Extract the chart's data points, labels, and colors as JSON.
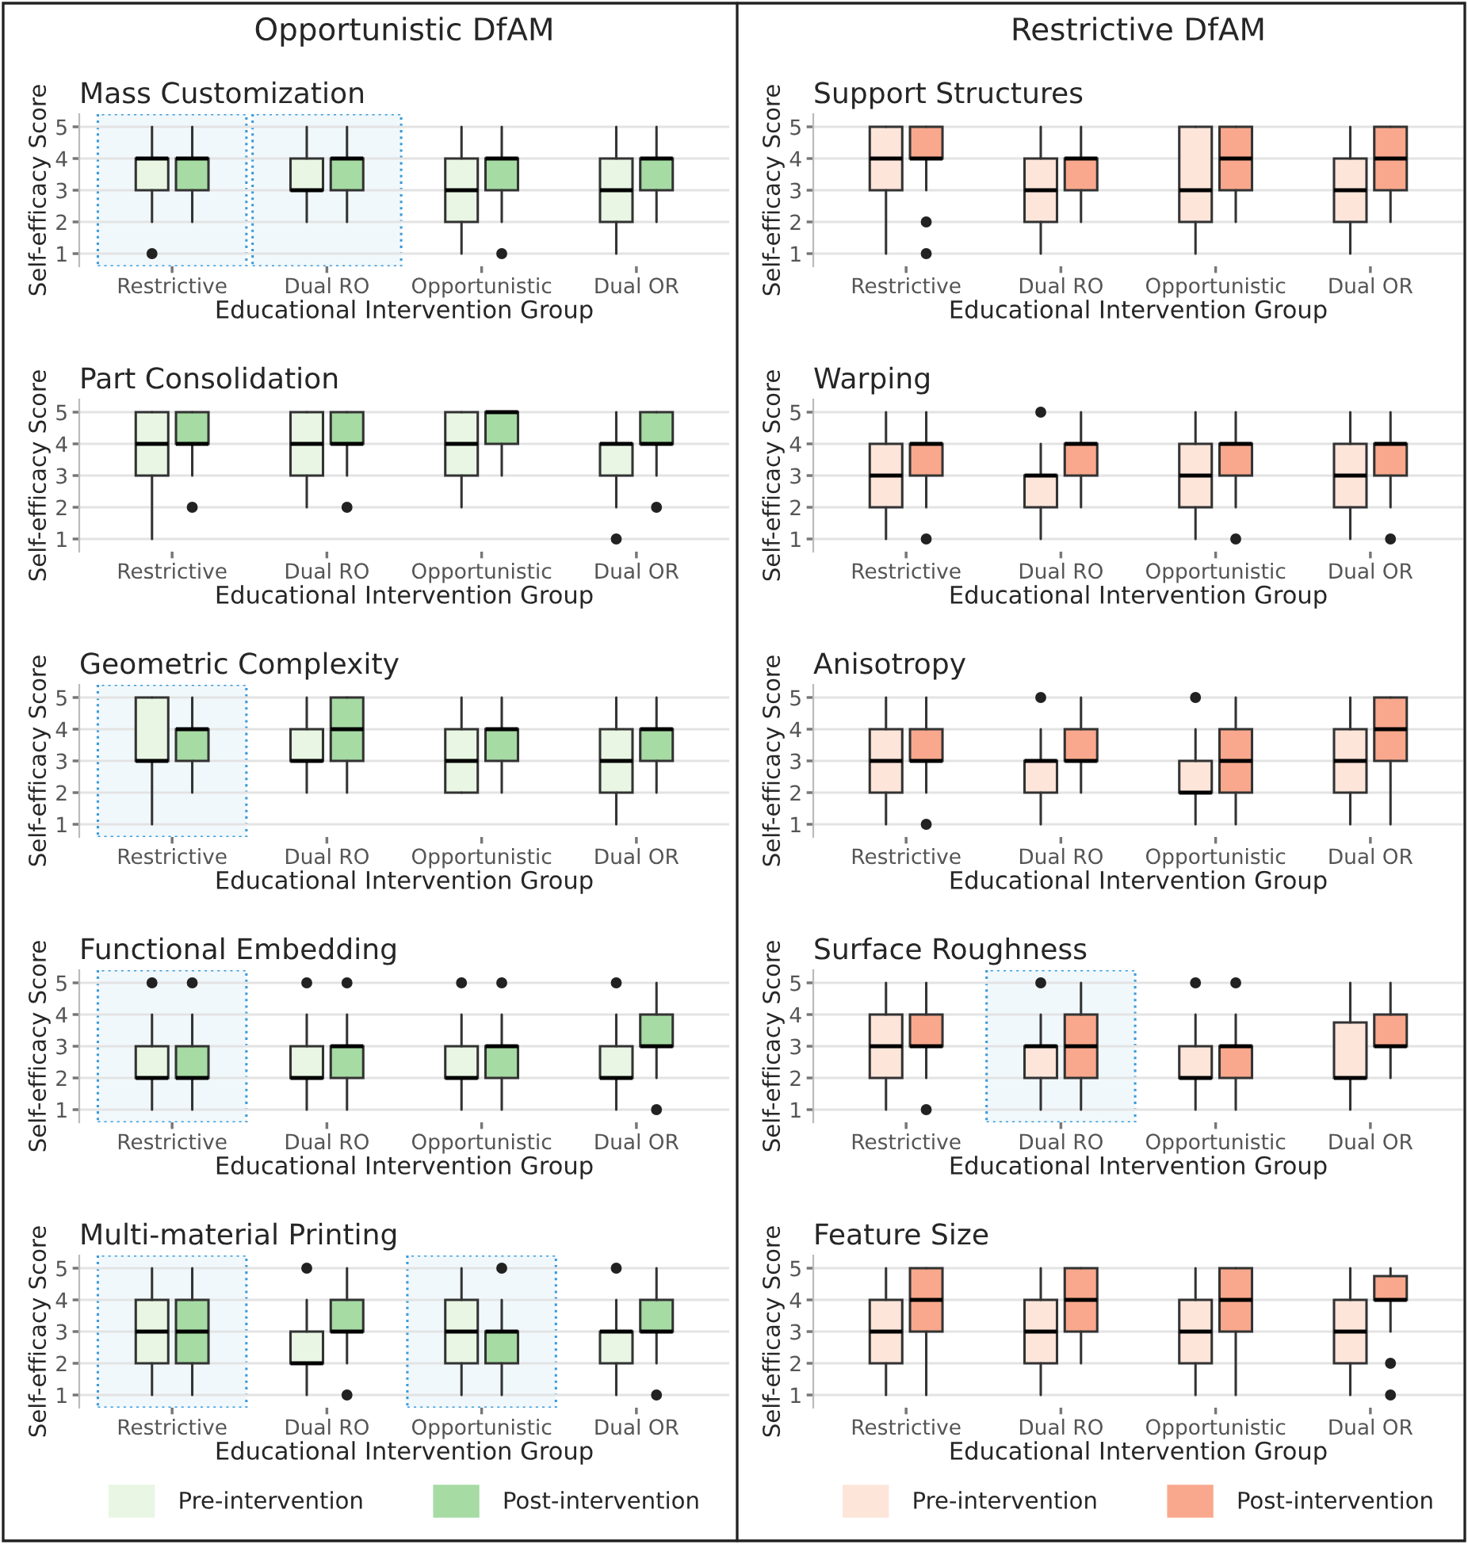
{
  "chart_data": [
    {
      "type": "box",
      "subtitle": "Opportunistic DfAM",
      "title": "Mass Customization",
      "xlabel": "Educational Intervention Group",
      "ylabel": "Self-efficacy Score",
      "categories": [
        "Restrictive",
        "Dual RO",
        "Opportunistic",
        "Dual OR"
      ],
      "ylim": [
        0.6,
        5.4
      ],
      "yticks": [
        1,
        2,
        3,
        4,
        5
      ],
      "grid": "y",
      "bands": [
        {
          "axis": "x",
          "from": "Restrictive",
          "to": "Restrictive",
          "color": "#3a9ad9"
        },
        {
          "axis": "x",
          "from": "Dual RO",
          "to": "Dual RO",
          "color": "#3a9ad9"
        }
      ],
      "series": [
        {
          "color": "#e8f6e3",
          "boxes": [
            {
              "low": 2,
              "q1": 3,
              "median": 4,
              "q3": 4,
              "high": 5,
              "outliers": [
                1
              ]
            },
            {
              "low": 2,
              "q1": 3,
              "median": 3,
              "q3": 4,
              "high": 5
            },
            {
              "low": 1,
              "q1": 2,
              "median": 3,
              "q3": 4,
              "high": 5
            },
            {
              "low": 1,
              "q1": 2,
              "median": 3,
              "q3": 4,
              "high": 5
            }
          ]
        },
        {
          "color": "#a6dba4",
          "boxes": [
            {
              "low": 2,
              "q1": 3,
              "median": 4,
              "q3": 4,
              "high": 5
            },
            {
              "low": 2,
              "q1": 3,
              "median": 4,
              "q3": 4,
              "high": 5
            },
            {
              "low": 2,
              "q1": 3,
              "median": 4,
              "q3": 4,
              "high": 5,
              "outliers": [
                1
              ]
            },
            {
              "low": 2,
              "q1": 3,
              "median": 4,
              "q3": 4,
              "high": 5
            }
          ]
        }
      ]
    },
    {
      "type": "box",
      "title": "Part Consolidation",
      "xlabel": "Educational Intervention Group",
      "ylabel": "Self-efficacy Score",
      "categories": [
        "Restrictive",
        "Dual RO",
        "Opportunistic",
        "Dual OR"
      ],
      "ylim": [
        0.6,
        5.4
      ],
      "yticks": [
        1,
        2,
        3,
        4,
        5
      ],
      "grid": "y",
      "series": [
        {
          "color": "#e8f6e3",
          "boxes": [
            {
              "low": 1,
              "q1": 3,
              "median": 4,
              "q3": 5,
              "high": 5
            },
            {
              "low": 2,
              "q1": 3,
              "median": 4,
              "q3": 5,
              "high": 5
            },
            {
              "low": 2,
              "q1": 3,
              "median": 4,
              "q3": 5,
              "high": 5
            },
            {
              "low": 2,
              "q1": 3,
              "median": 4,
              "q3": 4,
              "high": 5,
              "outliers": [
                1
              ]
            }
          ]
        },
        {
          "color": "#a6dba4",
          "boxes": [
            {
              "low": 3,
              "q1": 4,
              "median": 4,
              "q3": 5,
              "high": 5,
              "outliers": [
                2
              ]
            },
            {
              "low": 3,
              "q1": 4,
              "median": 4,
              "q3": 5,
              "high": 5,
              "outliers": [
                2
              ]
            },
            {
              "low": 3,
              "q1": 4,
              "median": 5,
              "q3": 5,
              "high": 5
            },
            {
              "low": 3,
              "q1": 4,
              "median": 4,
              "q3": 5,
              "high": 5,
              "outliers": [
                2
              ]
            }
          ]
        }
      ]
    },
    {
      "type": "box",
      "title": "Geometric Complexity",
      "xlabel": "Educational Intervention Group",
      "ylabel": "Self-efficacy Score",
      "categories": [
        "Restrictive",
        "Dual RO",
        "Opportunistic",
        "Dual OR"
      ],
      "ylim": [
        0.6,
        5.4
      ],
      "yticks": [
        1,
        2,
        3,
        4,
        5
      ],
      "grid": "y",
      "bands": [
        {
          "axis": "x",
          "from": "Restrictive",
          "to": "Restrictive",
          "color": "#3a9ad9"
        }
      ],
      "series": [
        {
          "color": "#e8f6e3",
          "boxes": [
            {
              "low": 1,
              "q1": 3,
              "median": 3,
              "q3": 5,
              "high": 5
            },
            {
              "low": 2,
              "q1": 3,
              "median": 3,
              "q3": 4,
              "high": 5
            },
            {
              "low": 2,
              "q1": 2,
              "median": 3,
              "q3": 4,
              "high": 5
            },
            {
              "low": 1,
              "q1": 2,
              "median": 3,
              "q3": 4,
              "high": 5
            }
          ]
        },
        {
          "color": "#a6dba4",
          "boxes": [
            {
              "low": 2,
              "q1": 3,
              "median": 4,
              "q3": 4,
              "high": 5
            },
            {
              "low": 2,
              "q1": 3,
              "median": 4,
              "q3": 5,
              "high": 5
            },
            {
              "low": 2,
              "q1": 3,
              "median": 4,
              "q3": 4,
              "high": 5
            },
            {
              "low": 2,
              "q1": 3,
              "median": 4,
              "q3": 4,
              "high": 5
            }
          ]
        }
      ]
    },
    {
      "type": "box",
      "title": "Functional Embedding",
      "xlabel": "Educational Intervention Group",
      "ylabel": "Self-efficacy Score",
      "categories": [
        "Restrictive",
        "Dual RO",
        "Opportunistic",
        "Dual OR"
      ],
      "ylim": [
        0.6,
        5.4
      ],
      "yticks": [
        1,
        2,
        3,
        4,
        5
      ],
      "grid": "y",
      "bands": [
        {
          "axis": "x",
          "from": "Restrictive",
          "to": "Restrictive",
          "color": "#3a9ad9"
        }
      ],
      "series": [
        {
          "color": "#e8f6e3",
          "boxes": [
            {
              "low": 1,
              "q1": 2,
              "median": 2,
              "q3": 3,
              "high": 4,
              "outliers": [
                5
              ]
            },
            {
              "low": 1,
              "q1": 2,
              "median": 2,
              "q3": 3,
              "high": 4,
              "outliers": [
                5
              ]
            },
            {
              "low": 1,
              "q1": 2,
              "median": 2,
              "q3": 3,
              "high": 4,
              "outliers": [
                5
              ]
            },
            {
              "low": 1,
              "q1": 2,
              "median": 2,
              "q3": 3,
              "high": 4,
              "outliers": [
                5
              ]
            }
          ]
        },
        {
          "color": "#a6dba4",
          "boxes": [
            {
              "low": 1,
              "q1": 2,
              "median": 2,
              "q3": 3,
              "high": 4,
              "outliers": [
                5
              ]
            },
            {
              "low": 1,
              "q1": 2,
              "median": 3,
              "q3": 3,
              "high": 4,
              "outliers": [
                5
              ]
            },
            {
              "low": 1,
              "q1": 2,
              "median": 3,
              "q3": 3,
              "high": 4,
              "outliers": [
                5
              ]
            },
            {
              "low": 2,
              "q1": 3,
              "median": 3,
              "q3": 4,
              "high": 5,
              "outliers": [
                1
              ]
            }
          ]
        }
      ]
    },
    {
      "type": "box",
      "title": "Multi-material Printing",
      "xlabel": "Educational Intervention Group",
      "ylabel": "Self-efficacy Score",
      "categories": [
        "Restrictive",
        "Dual RO",
        "Opportunistic",
        "Dual OR"
      ],
      "ylim": [
        0.6,
        5.4
      ],
      "yticks": [
        1,
        2,
        3,
        4,
        5
      ],
      "grid": "y",
      "legend": "bottom",
      "bands": [
        {
          "axis": "x",
          "from": "Restrictive",
          "to": "Restrictive",
          "color": "#3a9ad9"
        },
        {
          "axis": "x",
          "from": "Opportunistic",
          "to": "Opportunistic",
          "color": "#3a9ad9"
        }
      ],
      "series": [
        {
          "name": "Pre-intervention",
          "color": "#e8f6e3",
          "boxes": [
            {
              "low": 1,
              "q1": 2,
              "median": 3,
              "q3": 4,
              "high": 5
            },
            {
              "low": 1,
              "q1": 2,
              "median": 2,
              "q3": 3,
              "high": 4,
              "outliers": [
                5
              ]
            },
            {
              "low": 1,
              "q1": 2,
              "median": 3,
              "q3": 4,
              "high": 5
            },
            {
              "low": 1,
              "q1": 2,
              "median": 3,
              "q3": 3,
              "high": 4,
              "outliers": [
                5
              ]
            }
          ]
        },
        {
          "name": "Post-intervention",
          "color": "#a6dba4",
          "boxes": [
            {
              "low": 1,
              "q1": 2,
              "median": 3,
              "q3": 4,
              "high": 5
            },
            {
              "low": 2,
              "q1": 3,
              "median": 3,
              "q3": 4,
              "high": 5,
              "outliers": [
                1
              ]
            },
            {
              "low": 1,
              "q1": 2,
              "median": 3,
              "q3": 3,
              "high": 4,
              "outliers": [
                5
              ]
            },
            {
              "low": 2,
              "q1": 3,
              "median": 3,
              "q3": 4,
              "high": 5,
              "outliers": [
                1
              ]
            }
          ]
        }
      ]
    },
    {
      "type": "box",
      "subtitle": "Restrictive DfAM",
      "title": "Support Structures",
      "xlabel": "Educational Intervention Group",
      "ylabel": "Self-efficacy Score",
      "categories": [
        "Restrictive",
        "Dual RO",
        "Opportunistic",
        "Dual OR"
      ],
      "ylim": [
        0.6,
        5.4
      ],
      "yticks": [
        1,
        2,
        3,
        4,
        5
      ],
      "grid": "y",
      "series": [
        {
          "color": "#fde5da",
          "boxes": [
            {
              "low": 1,
              "q1": 3,
              "median": 4,
              "q3": 5,
              "high": 5
            },
            {
              "low": 1,
              "q1": 2,
              "median": 3,
              "q3": 4,
              "high": 5
            },
            {
              "low": 1,
              "q1": 2,
              "median": 3,
              "q3": 5,
              "high": 5
            },
            {
              "low": 1,
              "q1": 2,
              "median": 3,
              "q3": 4,
              "high": 5
            }
          ]
        },
        {
          "color": "#f9a88d",
          "boxes": [
            {
              "low": 3,
              "q1": 4,
              "median": 4,
              "q3": 5,
              "high": 5,
              "outliers": [
                2,
                1
              ]
            },
            {
              "low": 2,
              "q1": 3,
              "median": 4,
              "q3": 4,
              "high": 5
            },
            {
              "low": 2,
              "q1": 3,
              "median": 4,
              "q3": 5,
              "high": 5
            },
            {
              "low": 2,
              "q1": 3,
              "median": 4,
              "q3": 5,
              "high": 5
            }
          ]
        }
      ]
    },
    {
      "type": "box",
      "title": "Warping",
      "xlabel": "Educational Intervention Group",
      "ylabel": "Self-efficacy Score",
      "categories": [
        "Restrictive",
        "Dual RO",
        "Opportunistic",
        "Dual OR"
      ],
      "ylim": [
        0.6,
        5.4
      ],
      "yticks": [
        1,
        2,
        3,
        4,
        5
      ],
      "grid": "y",
      "series": [
        {
          "color": "#fde5da",
          "boxes": [
            {
              "low": 1,
              "q1": 2,
              "median": 3,
              "q3": 4,
              "high": 5
            },
            {
              "low": 1,
              "q1": 2,
              "median": 3,
              "q3": 3,
              "high": 4,
              "outliers": [
                5
              ]
            },
            {
              "low": 1,
              "q1": 2,
              "median": 3,
              "q3": 4,
              "high": 5
            },
            {
              "low": 1,
              "q1": 2,
              "median": 3,
              "q3": 4,
              "high": 5
            }
          ]
        },
        {
          "color": "#f9a88d",
          "boxes": [
            {
              "low": 2,
              "q1": 3,
              "median": 4,
              "q3": 4,
              "high": 5,
              "outliers": [
                1
              ]
            },
            {
              "low": 2,
              "q1": 3,
              "median": 4,
              "q3": 4,
              "high": 5
            },
            {
              "low": 2,
              "q1": 3,
              "median": 4,
              "q3": 4,
              "high": 5,
              "outliers": [
                1
              ]
            },
            {
              "low": 2,
              "q1": 3,
              "median": 4,
              "q3": 4,
              "high": 5,
              "outliers": [
                1
              ]
            }
          ]
        }
      ]
    },
    {
      "type": "box",
      "title": "Anisotropy",
      "xlabel": "Educational Intervention Group",
      "ylabel": "Self-efficacy Score",
      "categories": [
        "Restrictive",
        "Dual RO",
        "Opportunistic",
        "Dual OR"
      ],
      "ylim": [
        0.6,
        5.4
      ],
      "yticks": [
        1,
        2,
        3,
        4,
        5
      ],
      "grid": "y",
      "series": [
        {
          "color": "#fde5da",
          "boxes": [
            {
              "low": 1,
              "q1": 2,
              "median": 3,
              "q3": 4,
              "high": 5
            },
            {
              "low": 1,
              "q1": 2,
              "median": 3,
              "q3": 3,
              "high": 4,
              "outliers": [
                5
              ]
            },
            {
              "low": 1,
              "q1": 2,
              "median": 2,
              "q3": 3,
              "high": 4,
              "outliers": [
                5
              ]
            },
            {
              "low": 1,
              "q1": 2,
              "median": 3,
              "q3": 4,
              "high": 5
            }
          ]
        },
        {
          "color": "#f9a88d",
          "boxes": [
            {
              "low": 2,
              "q1": 3,
              "median": 3,
              "q3": 4,
              "high": 5,
              "outliers": [
                1
              ]
            },
            {
              "low": 2,
              "q1": 3,
              "median": 3,
              "q3": 4,
              "high": 5
            },
            {
              "low": 1,
              "q1": 2,
              "median": 3,
              "q3": 4,
              "high": 5
            },
            {
              "low": 1,
              "q1": 3,
              "median": 4,
              "q3": 5,
              "high": 5
            }
          ]
        }
      ]
    },
    {
      "type": "box",
      "title": "Surface Roughness",
      "xlabel": "Educational Intervention Group",
      "ylabel": "Self-efficacy Score",
      "categories": [
        "Restrictive",
        "Dual RO",
        "Opportunistic",
        "Dual OR"
      ],
      "ylim": [
        0.6,
        5.4
      ],
      "yticks": [
        1,
        2,
        3,
        4,
        5
      ],
      "grid": "y",
      "bands": [
        {
          "axis": "x",
          "from": "Dual RO",
          "to": "Dual RO",
          "color": "#3a9ad9"
        }
      ],
      "series": [
        {
          "color": "#fde5da",
          "boxes": [
            {
              "low": 1,
              "q1": 2,
              "median": 3,
              "q3": 4,
              "high": 5
            },
            {
              "low": 1,
              "q1": 2,
              "median": 3,
              "q3": 3,
              "high": 4,
              "outliers": [
                5
              ]
            },
            {
              "low": 1,
              "q1": 2,
              "median": 2,
              "q3": 3,
              "high": 4,
              "outliers": [
                5
              ]
            },
            {
              "low": 1,
              "q1": 2,
              "median": 2,
              "q3": 3.75,
              "high": 5
            }
          ]
        },
        {
          "color": "#f9a88d",
          "boxes": [
            {
              "low": 2,
              "q1": 3,
              "median": 3,
              "q3": 4,
              "high": 5,
              "outliers": [
                1
              ]
            },
            {
              "low": 1,
              "q1": 2,
              "median": 3,
              "q3": 4,
              "high": 5
            },
            {
              "low": 1,
              "q1": 2,
              "median": 3,
              "q3": 3,
              "high": 4,
              "outliers": [
                5
              ]
            },
            {
              "low": 2,
              "q1": 3,
              "median": 3,
              "q3": 4,
              "high": 5
            }
          ]
        }
      ]
    },
    {
      "type": "box",
      "title": "Feature Size",
      "xlabel": "Educational Intervention Group",
      "ylabel": "Self-efficacy Score",
      "categories": [
        "Restrictive",
        "Dual RO",
        "Opportunistic",
        "Dual OR"
      ],
      "ylim": [
        0.6,
        5.4
      ],
      "yticks": [
        1,
        2,
        3,
        4,
        5
      ],
      "grid": "y",
      "legend": "bottom",
      "series": [
        {
          "name": "Pre-intervention",
          "color": "#fde5da",
          "boxes": [
            {
              "low": 1,
              "q1": 2,
              "median": 3,
              "q3": 4,
              "high": 5
            },
            {
              "low": 1,
              "q1": 2,
              "median": 3,
              "q3": 4,
              "high": 5
            },
            {
              "low": 1,
              "q1": 2,
              "median": 3,
              "q3": 4,
              "high": 5
            },
            {
              "low": 1,
              "q1": 2,
              "median": 3,
              "q3": 4,
              "high": 5
            }
          ]
        },
        {
          "name": "Post-intervention",
          "color": "#f9a88d",
          "boxes": [
            {
              "low": 1,
              "q1": 3,
              "median": 4,
              "q3": 5,
              "high": 5
            },
            {
              "low": 2,
              "q1": 3,
              "median": 4,
              "q3": 5,
              "high": 5
            },
            {
              "low": 1,
              "q1": 3,
              "median": 4,
              "q3": 5,
              "high": 5
            },
            {
              "low": 3,
              "q1": 4,
              "median": 4,
              "q3": 4.75,
              "high": 5,
              "outliers": [
                2,
                1
              ]
            }
          ]
        }
      ]
    }
  ]
}
